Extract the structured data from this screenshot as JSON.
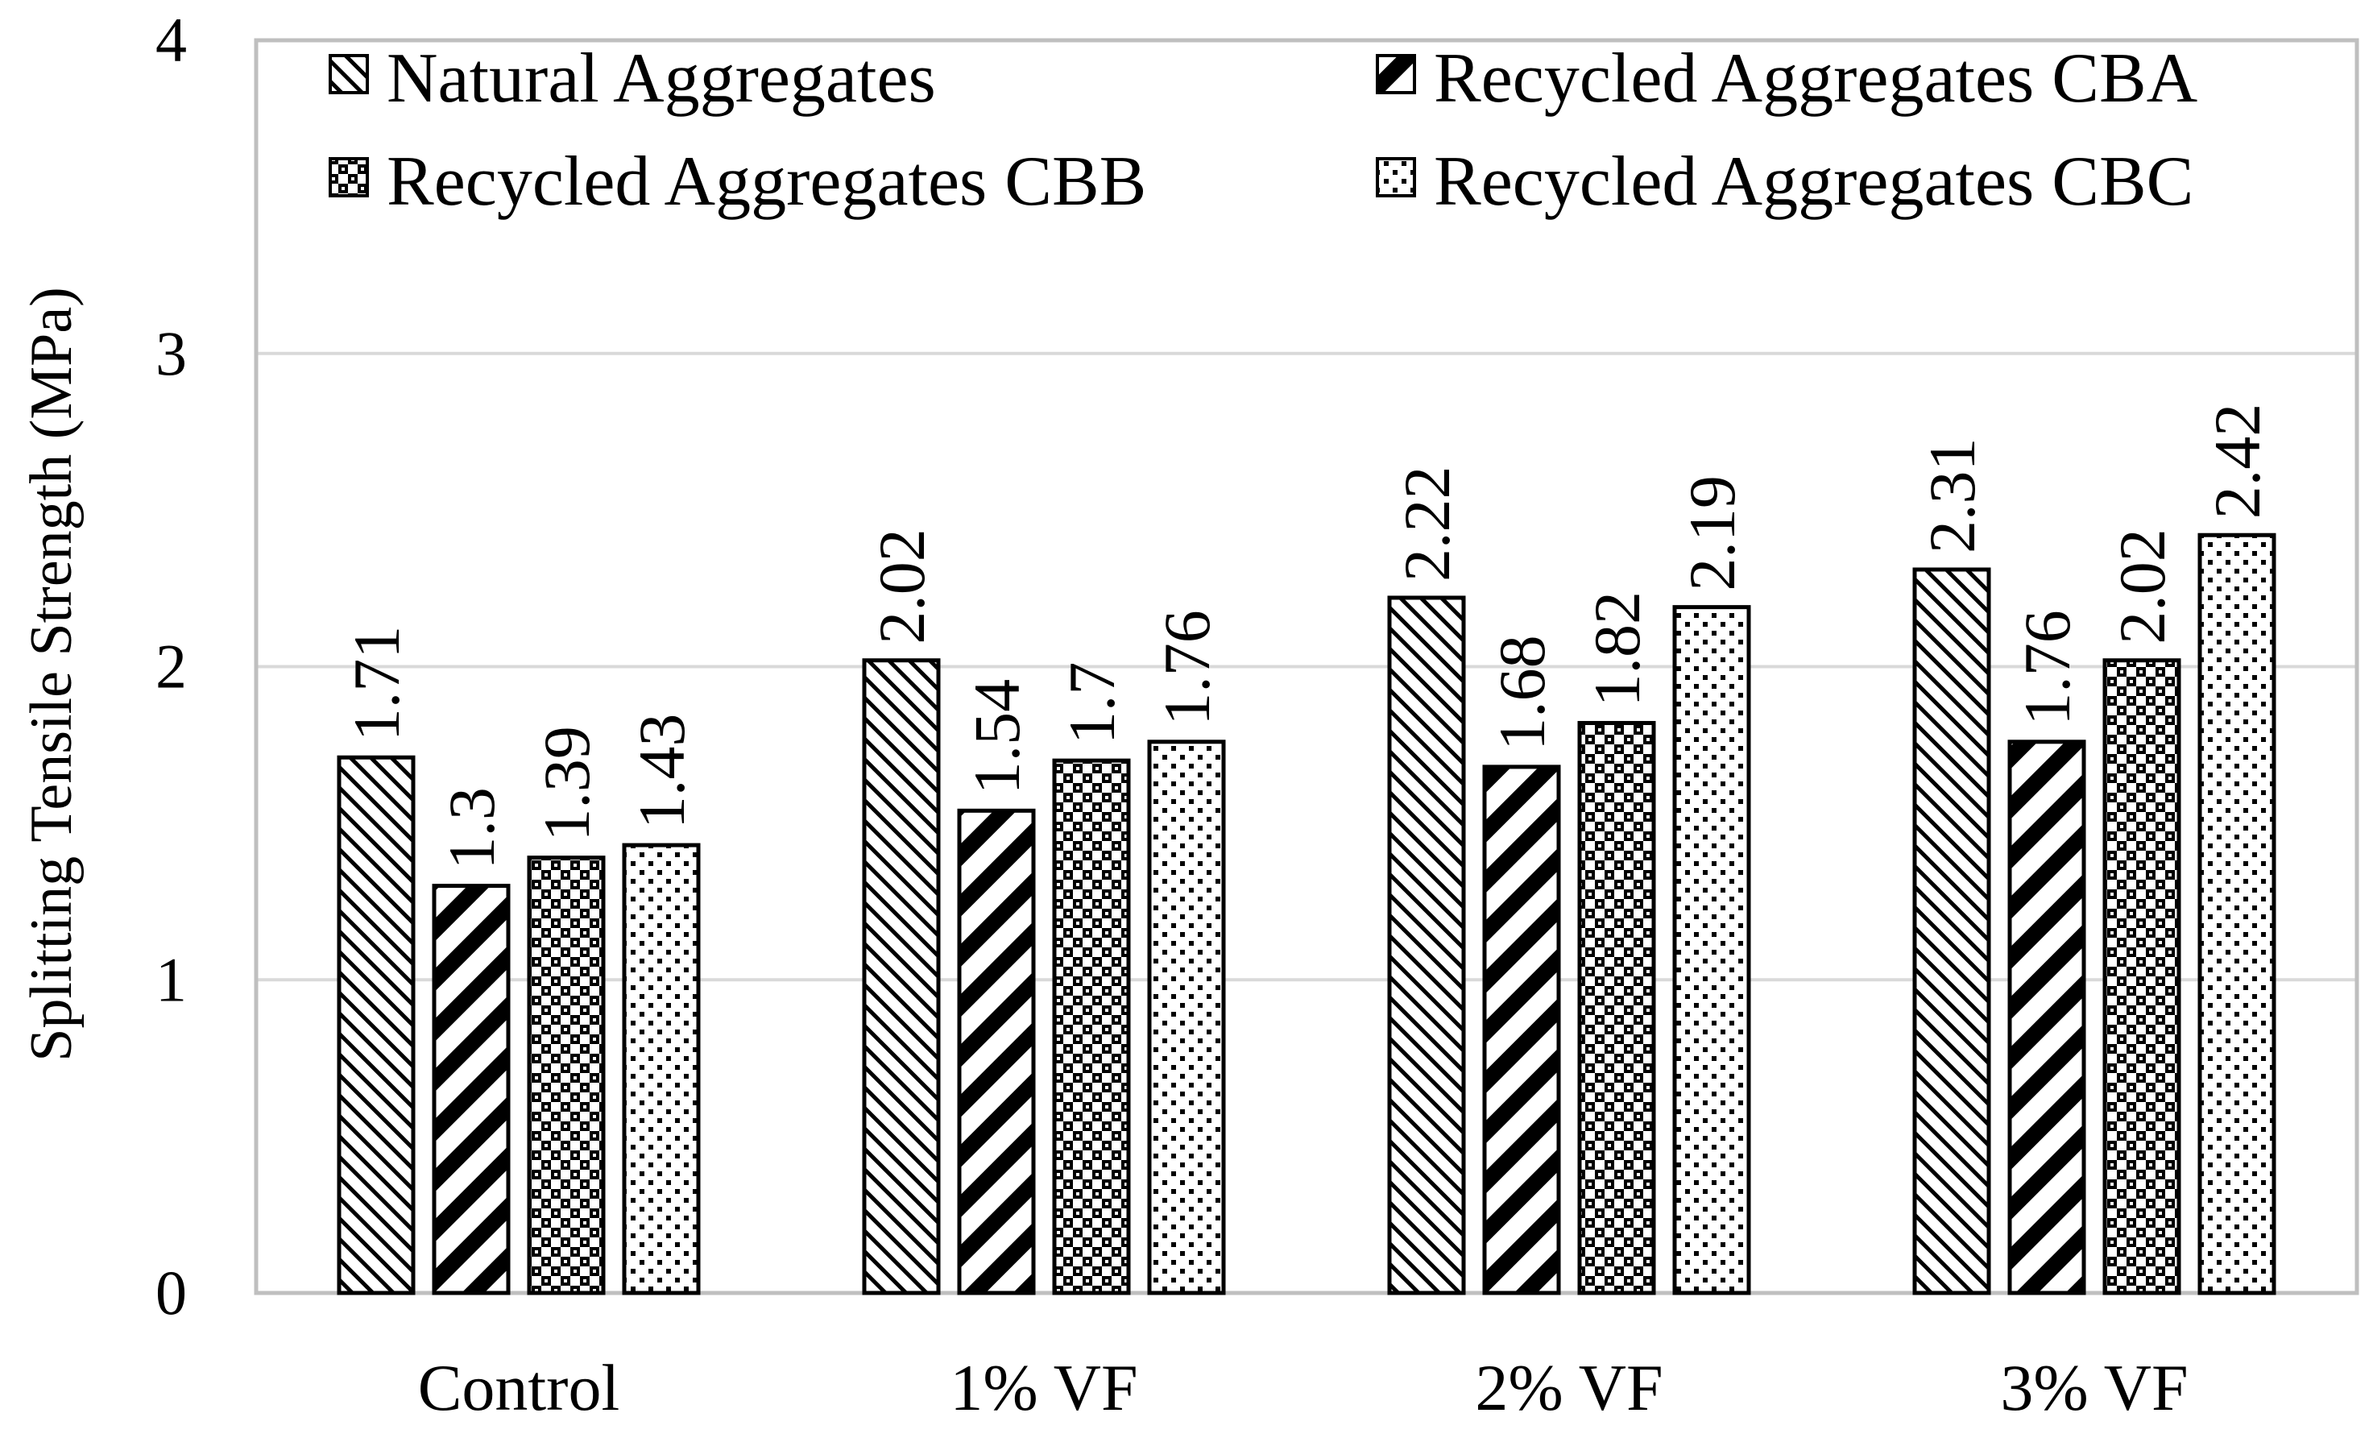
{
  "chart_data": {
    "type": "bar",
    "title": "",
    "xlabel": "",
    "ylabel": "Splitting Tensile Strength (MPa)",
    "ylim": [
      0,
      4
    ],
    "yticks": [
      "0",
      "1",
      "2",
      "3",
      "4"
    ],
    "grid": true,
    "legend_position": "top",
    "categories": [
      "Control",
      "1% VF",
      "2% VF",
      "3% VF"
    ],
    "series": [
      {
        "name": "Natural Aggregates",
        "pattern": "fine-diagonal-hatch",
        "values": [
          1.71,
          2.02,
          2.22,
          2.31
        ],
        "labels": [
          "1.71",
          "2.02",
          "2.22",
          "2.31"
        ]
      },
      {
        "name": "Recycled Aggregates CBA",
        "pattern": "bold-diagonal-stripes",
        "values": [
          1.3,
          1.54,
          1.68,
          1.76
        ],
        "labels": [
          "1.3",
          "1.54",
          "1.68",
          "1.76"
        ]
      },
      {
        "name": "Recycled Aggregates CBB",
        "pattern": "dense-checker-dots",
        "values": [
          1.39,
          1.7,
          1.82,
          2.02
        ],
        "labels": [
          "1.39",
          "1.7",
          "1.82",
          "2.02"
        ]
      },
      {
        "name": "Recycled Aggregates CBC",
        "pattern": "sparse-dots",
        "values": [
          1.43,
          1.76,
          2.19,
          2.42
        ],
        "labels": [
          "1.43",
          "1.76",
          "2.19",
          "2.42"
        ]
      }
    ],
    "colors": {
      "bar_fill": "#ffffff",
      "bar_stroke": "#000000",
      "grid": "#d9d9d9",
      "axis": "#bfbfbf"
    }
  }
}
